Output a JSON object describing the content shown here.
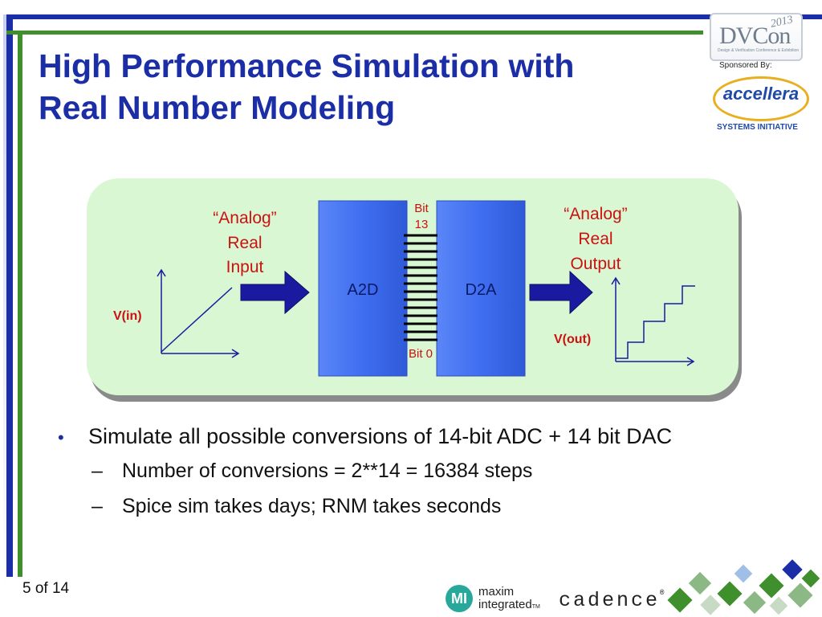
{
  "slide": {
    "title_line1": "High Performance Simulation with",
    "title_line2": "Real Number Modeling",
    "page_number": "5 of 14"
  },
  "logos": {
    "dvcon_text": "DVCon",
    "dvcon_year": "2013",
    "dvcon_subtitle": "Design & Verification Conference & Exhibition",
    "sponsored_by": "Sponsored By:",
    "accellera": "accellera",
    "systems_initiative": "SYSTEMS INITIATIVE",
    "maxim_badge": "MI",
    "maxim_line1": "maxim",
    "maxim_line2": "integrated",
    "maxim_tm": "TM",
    "cadence": "cadence",
    "cadence_reg": "®"
  },
  "diagram": {
    "input_quote": "“Analog”",
    "input_real": "Real",
    "input_word": "Input",
    "output_quote": "“Analog”",
    "output_real": "Real",
    "output_word": "Output",
    "a2d": "A2D",
    "d2a": "D2A",
    "bit_top_1": "Bit",
    "bit_top_2": "13",
    "bit_bottom": "Bit 0",
    "vin": "V(in)",
    "vout": "V(out)",
    "colors": {
      "panel_fill": "#d9f7d2",
      "block_fill": "#3f6ef0",
      "label_red": "#cc1111",
      "arrow_fill": "#1a1aa0"
    }
  },
  "bullets": [
    {
      "text": "Simulate all possible conversions of 14-bit ADC + 14 bit DAC",
      "subs": [
        "Number of conversions = 2**14 = 16384 steps",
        "Spice sim takes days; RNM takes seconds"
      ]
    }
  ]
}
